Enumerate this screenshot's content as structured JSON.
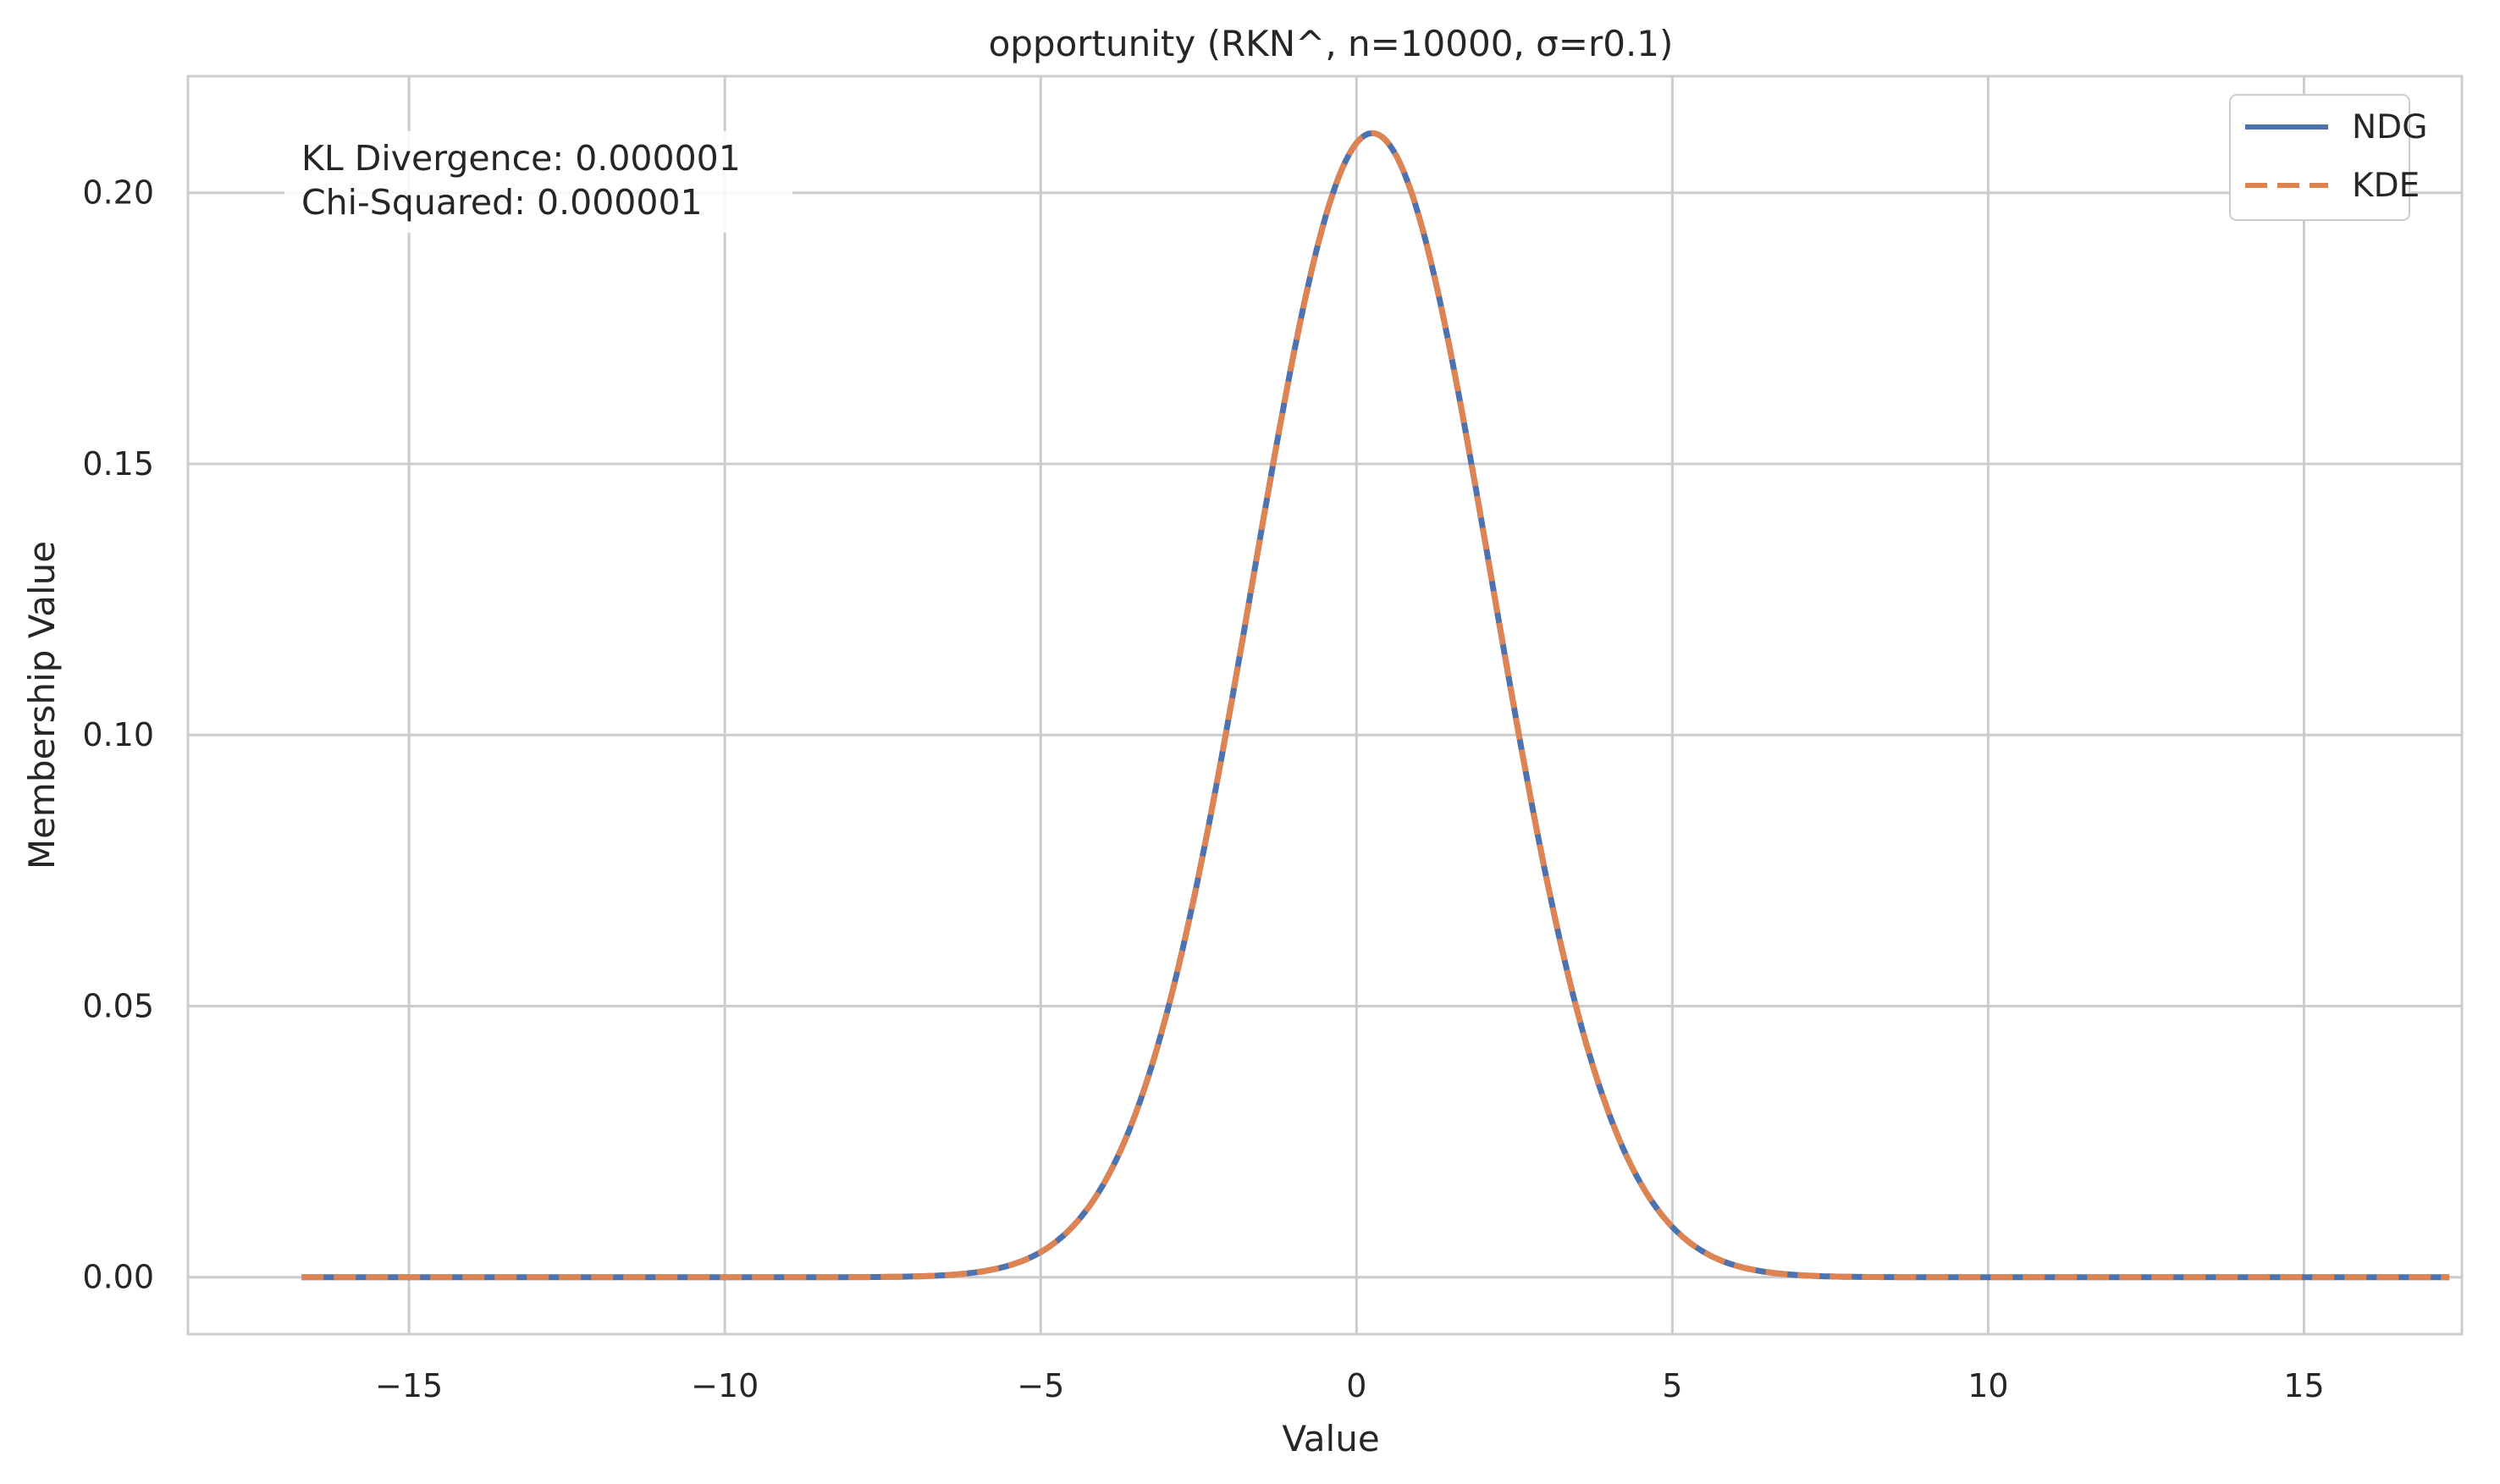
{
  "chart_data": {
    "type": "line",
    "title": "opportunity (RKN^, n=10000, σ=r0.1)",
    "xlabel": "Value",
    "ylabel": "Membership Value",
    "xlim": [
      -18.5,
      17.5
    ],
    "ylim": [
      -0.0105,
      0.2215
    ],
    "x_ticks": [
      -15,
      -10,
      -5,
      0,
      5,
      10,
      15
    ],
    "x_tick_labels": [
      "−15",
      "−10",
      "−5",
      "0",
      "5",
      "10",
      "15"
    ],
    "y_ticks": [
      0.0,
      0.05,
      0.1,
      0.15,
      0.2
    ],
    "y_tick_labels": [
      "0.00",
      "0.05",
      "0.10",
      "0.15",
      "0.20"
    ],
    "grid": true,
    "legend_position": "top-right",
    "annotation_lines": [
      "KL Divergence: 0.000001",
      "Chi-Squared: 0.000001"
    ],
    "curve": {
      "x_min": -16.7,
      "x_max": 17.3,
      "peak_x": 0.25,
      "peak_y": 0.211,
      "sigma": 1.9
    },
    "series": [
      {
        "name": "NDG",
        "color": "#4c72b0",
        "style": "solid"
      },
      {
        "name": "KDE",
        "color": "#dd8452",
        "style": "dashed"
      }
    ]
  }
}
